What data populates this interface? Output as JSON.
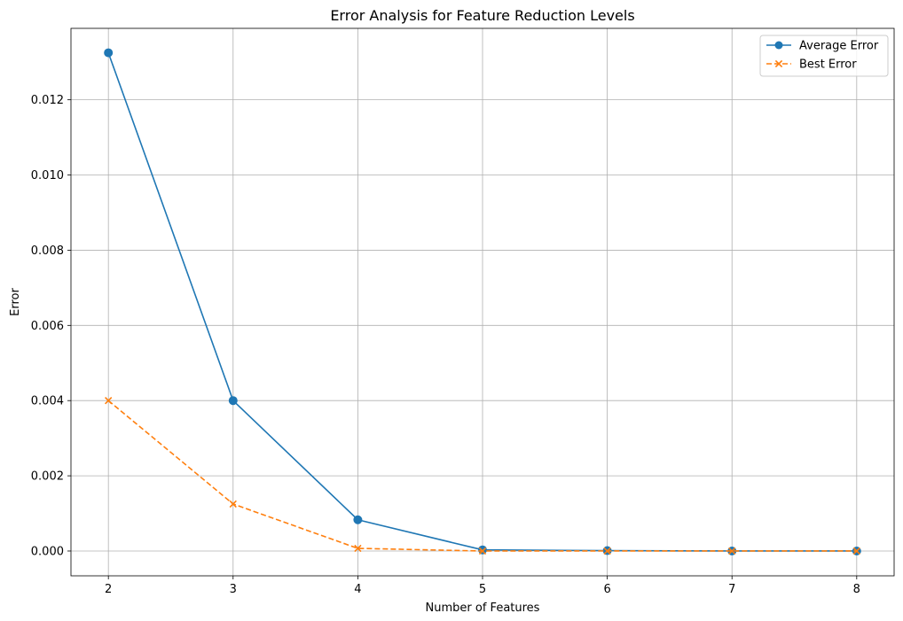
{
  "chart_data": {
    "type": "line",
    "title": "Error Analysis for Feature Reduction Levels",
    "xlabel": "Number of Features",
    "ylabel": "Error",
    "x": [
      2,
      3,
      4,
      5,
      6,
      7,
      8
    ],
    "xticks": [
      2,
      3,
      4,
      5,
      6,
      7,
      8
    ],
    "yticks": [
      0.0,
      0.002,
      0.004,
      0.006,
      0.008,
      0.01,
      0.012
    ],
    "ytick_labels": [
      "0.000",
      "0.002",
      "0.004",
      "0.006",
      "0.008",
      "0.010",
      "0.012"
    ],
    "xlim": [
      1.7,
      8.3
    ],
    "ylim": [
      -0.00066,
      0.0139
    ],
    "grid": true,
    "legend_position": "top-right",
    "series": [
      {
        "name": "Average Error",
        "values": [
          0.01325,
          0.004,
          0.00083,
          3e-05,
          1e-05,
          0.0,
          0.0
        ],
        "color": "#1f77b4",
        "line_style": "solid",
        "marker": "circle"
      },
      {
        "name": "Best Error",
        "values": [
          0.004,
          0.00125,
          7e-05,
          0.0,
          0.0,
          0.0,
          0.0
        ],
        "color": "#ff7f0e",
        "line_style": "dashed",
        "marker": "x"
      }
    ]
  }
}
